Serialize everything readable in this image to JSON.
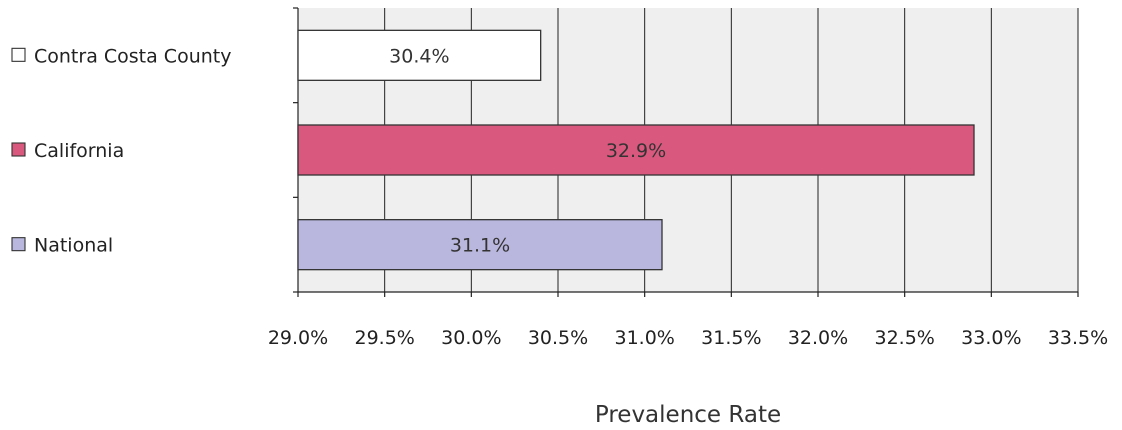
{
  "chart_data": {
    "type": "bar",
    "orientation": "horizontal",
    "categories": [
      "Contra Costa County",
      "California",
      "National"
    ],
    "values": [
      30.4,
      32.9,
      31.1
    ],
    "data_labels": [
      "30.4%",
      "32.9%",
      "31.1%"
    ],
    "bar_colors": [
      "#ffffff",
      "#d9587e",
      "#b9b7de"
    ],
    "xlabel": "Prevalence Rate",
    "xlim": [
      29.0,
      33.5
    ],
    "x_ticks": [
      29.0,
      29.5,
      30.0,
      30.5,
      31.0,
      31.5,
      32.0,
      32.5,
      33.0,
      33.5
    ],
    "x_tick_labels": [
      "29.0%",
      "29.5%",
      "30.0%",
      "30.5%",
      "31.0%",
      "31.5%",
      "32.0%",
      "32.5%",
      "33.0%",
      "33.5%"
    ],
    "grid": true,
    "legend": {
      "placement": "left",
      "entries": [
        {
          "label": "Contra Costa County",
          "color": "#ffffff"
        },
        {
          "label": "California",
          "color": "#d9587e"
        },
        {
          "label": "National",
          "color": "#b9b7de"
        }
      ]
    }
  }
}
